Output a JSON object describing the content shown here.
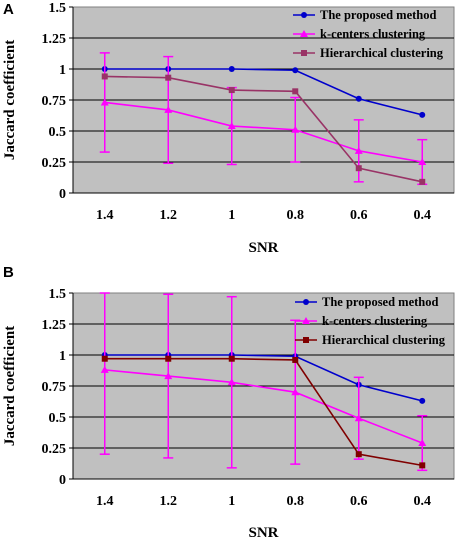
{
  "chart_data": [
    {
      "type": "line",
      "panel": "A",
      "title": "",
      "xlabel": "SNR",
      "ylabel": "Jaccard coefficient",
      "categories": [
        "1.4",
        "1.2",
        "1",
        "0.8",
        "0.6",
        "0.4"
      ],
      "ylim": [
        0,
        1.5
      ],
      "yticks": [
        "0",
        "0.25",
        "0.5",
        "0.75",
        "1",
        "1.25",
        "1.5"
      ],
      "grid": "horizontal",
      "legend_position": "top-right",
      "series": [
        {
          "name": "The proposed method",
          "color": "#0000cc",
          "marker": "circle",
          "values": [
            1.0,
            1.0,
            1.0,
            0.99,
            0.76,
            0.63
          ],
          "error": null
        },
        {
          "name": "k-centers clustering",
          "color": "#ff00ff",
          "marker": "triangle",
          "values": [
            0.73,
            0.67,
            0.54,
            0.51,
            0.34,
            0.25
          ],
          "error": [
            0.4,
            0.43,
            0.31,
            0.26,
            0.25,
            0.18
          ]
        },
        {
          "name": "Hierarchical clustering",
          "color": "#993366",
          "marker": "square",
          "values": [
            0.94,
            0.93,
            0.83,
            0.82,
            0.2,
            0.09
          ],
          "error": null
        }
      ]
    },
    {
      "type": "line",
      "panel": "B",
      "title": "",
      "xlabel": "SNR",
      "ylabel": "Jaccard coefficient",
      "categories": [
        "1.4",
        "1.2",
        "1",
        "0.8",
        "0.6",
        "0.4"
      ],
      "ylim": [
        0,
        1.5
      ],
      "yticks": [
        "0",
        "0.25",
        "0.5",
        "0.75",
        "1",
        "1.25",
        "1.5"
      ],
      "grid": "horizontal",
      "legend_position": "top-right",
      "series": [
        {
          "name": "The proposed method",
          "color": "#0000cc",
          "marker": "circle",
          "values": [
            1.0,
            1.0,
            1.0,
            0.99,
            0.76,
            0.63
          ],
          "error": null
        },
        {
          "name": "k-centers clustering",
          "color": "#ff00ff",
          "marker": "triangle",
          "values": [
            0.88,
            0.83,
            0.78,
            0.7,
            0.49,
            0.29
          ],
          "error": [
            0.68,
            0.66,
            0.69,
            0.58,
            0.33,
            0.22
          ]
        },
        {
          "name": "Hierarchical clustering",
          "color": "#800000",
          "marker": "square",
          "values": [
            0.97,
            0.97,
            0.97,
            0.96,
            0.2,
            0.11
          ],
          "error": null
        }
      ]
    }
  ],
  "colors": {
    "plot_background": "#c0c0c0",
    "gridline": "#000000"
  }
}
